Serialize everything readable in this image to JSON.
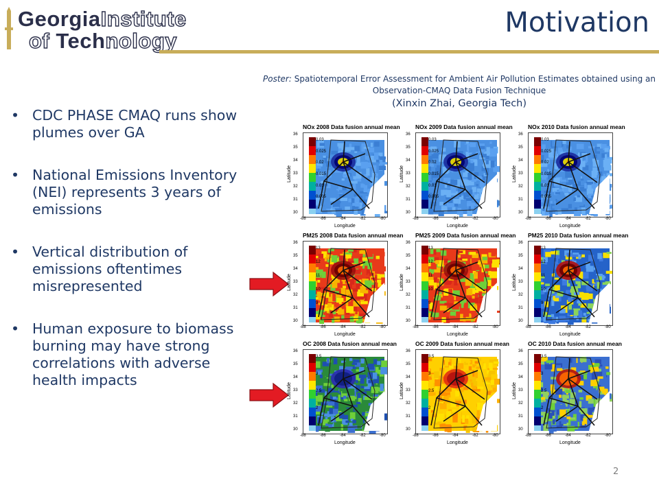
{
  "logo": {
    "line1_a": "Georgia",
    "line1_b": "Institute",
    "line2_a": "of ",
    "line2_b": "Tech",
    "line2_c": "nology"
  },
  "title": "Motivation",
  "caption": {
    "label": "Poster:",
    "text": "Spatiotemporal Error Assessment for Ambient Air Pollution Estimates obtained using an Observation-CMAQ Data Fusion Technique",
    "author": "(Xinxin Zhai, Georgia Tech)"
  },
  "bullets": [
    "CDC PHASE CMAQ runs show plumes over GA",
    "National Emissions Inventory (NEI) represents 3 years of emissions",
    "Vertical distribution of emissions oftentimes misrepresented",
    "Human exposure to biomass burning may have strong correlations with adverse health impacts"
  ],
  "panels": [
    {
      "title": "NOx 2008 Data fusion annual mean",
      "ticks": [
        "0.03",
        "0.025",
        "0.02",
        "0.015",
        "0.01",
        "0.005"
      ],
      "palette": "nox"
    },
    {
      "title": "NOx 2009 Data fusion annual mean",
      "ticks": [
        "0.03",
        "0.025",
        "0.02",
        "0.015",
        "0.01",
        "0.005"
      ],
      "palette": "nox"
    },
    {
      "title": "NOx 2010 Data fusion annual mean",
      "ticks": [
        "0.03",
        "0.025",
        "0.02",
        "0.015",
        "0.01",
        "0.005"
      ],
      "palette": "nox"
    },
    {
      "title": "PM25 2008 Data fusion annual mean",
      "ticks": [
        "13",
        "12",
        "11",
        "10",
        "9"
      ],
      "palette": "pm_hot"
    },
    {
      "title": "PM25 2009 Data fusion annual mean",
      "ticks": [
        "13",
        "12",
        "11",
        "10",
        "9"
      ],
      "palette": "pm_hot"
    },
    {
      "title": "PM25 2010 Data fusion annual mean",
      "ticks": [
        "13",
        "12",
        "11",
        "10",
        "9"
      ],
      "palette": "pm_cool"
    },
    {
      "title": "OC 2008 Data fusion annual mean",
      "ticks": [
        "3.5",
        "3",
        "2.5",
        "2"
      ],
      "palette": "oc_cool"
    },
    {
      "title": "OC 2009 Data fusion annual mean",
      "ticks": [
        "3.5",
        "3",
        "2.5",
        "2"
      ],
      "palette": "oc_warm"
    },
    {
      "title": "OC 2010 Data fusion annual mean",
      "ticks": [
        "3.5",
        "3",
        "2.5",
        "2"
      ],
      "palette": "oc_mixed"
    }
  ],
  "axes": {
    "xlabel": "Longitude",
    "ylabel": "Latitude",
    "xticks": [
      "-88",
      "-86",
      "-84",
      "-82",
      "-80"
    ],
    "yticks": [
      "36",
      "35",
      "34",
      "33",
      "32",
      "31",
      "30"
    ]
  },
  "page_number": "2",
  "colors": {
    "title": "#1f3864",
    "accent_rule": "#c8ad5a",
    "arrow": "#e31b23"
  }
}
